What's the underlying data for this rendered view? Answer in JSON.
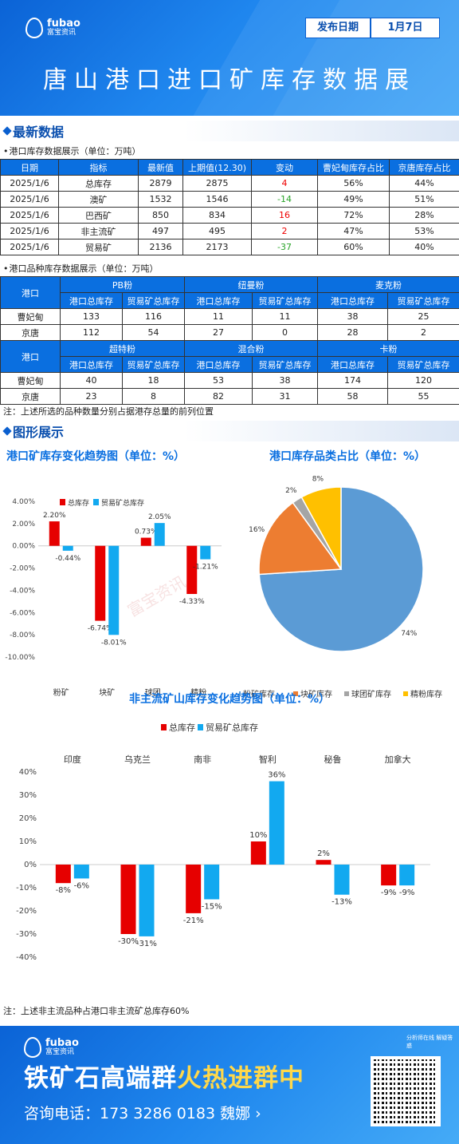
{
  "header": {
    "logo_en": "fubao",
    "logo_cn": "富宝资讯",
    "date_label": "发布日期",
    "date_value": "1月7日",
    "title": "唐山港口进口矿库存数据展"
  },
  "section1": {
    "title": "最新数据"
  },
  "table1": {
    "caption": "港口库存数据展示（单位：万吨）",
    "headers": [
      "日期",
      "指标",
      "最新值",
      "上期值(12.30)",
      "变动",
      "曹妃甸库存占比",
      "京唐库存占比"
    ],
    "rows": [
      [
        "2025/1/6",
        "总库存",
        "2879",
        "2875",
        "4",
        "56%",
        "44%"
      ],
      [
        "2025/1/6",
        "澳矿",
        "1532",
        "1546",
        "-14",
        "49%",
        "51%"
      ],
      [
        "2025/1/6",
        "巴西矿",
        "850",
        "834",
        "16",
        "72%",
        "28%"
      ],
      [
        "2025/1/6",
        "非主流矿",
        "497",
        "495",
        "2",
        "47%",
        "53%"
      ],
      [
        "2025/1/6",
        "贸易矿",
        "2136",
        "2173",
        "-37",
        "60%",
        "40%"
      ]
    ]
  },
  "table2": {
    "caption": "港口品种库存数据展示（单位：万吨）",
    "port_label": "港口",
    "groups1": [
      "PB粉",
      "纽曼粉",
      "麦克粉"
    ],
    "groups2": [
      "超特粉",
      "混合粉",
      "卡粉"
    ],
    "sub_headers": [
      "港口总库存",
      "贸易矿总库存"
    ],
    "rows1": [
      [
        "曹妃甸",
        "133",
        "116",
        "11",
        "11",
        "38",
        "25"
      ],
      [
        "京唐",
        "112",
        "54",
        "27",
        "0",
        "28",
        "2"
      ]
    ],
    "rows2": [
      [
        "曹妃甸",
        "40",
        "18",
        "53",
        "38",
        "174",
        "120"
      ],
      [
        "京唐",
        "23",
        "8",
        "82",
        "31",
        "58",
        "55"
      ]
    ],
    "note": "注：上述所选的品种数量分别占据港存总量的前列位置"
  },
  "section2": {
    "title": "图形展示"
  },
  "watermark": "富宝资讯",
  "chart_data": [
    {
      "type": "bar",
      "title": "港口矿库存变化趋势图（单位：%）",
      "categories": [
        "粉矿",
        "块矿",
        "球团",
        "精粉"
      ],
      "series": [
        {
          "name": "总库存",
          "values": [
            2.2,
            -6.74,
            0.73,
            -4.33
          ],
          "labels": [
            "2.20%",
            "-6.74%",
            "0.73%",
            "-4.33%"
          ]
        },
        {
          "name": "贸易矿总库存",
          "values": [
            -0.44,
            -8.01,
            2.05,
            -1.21
          ],
          "labels": [
            "-0.44%",
            "-8.01%",
            "2.05%",
            "-1.21%"
          ]
        }
      ],
      "yticks": [
        "4.00%",
        "2.00%",
        "0.00%",
        "-2.00%",
        "-4.00%",
        "-6.00%",
        "-8.00%",
        "-10.00%"
      ],
      "ylim": [
        -10,
        4
      ],
      "colors": [
        "#e60000",
        "#12a9f0"
      ]
    },
    {
      "type": "pie",
      "title": "港口库存品类占比（单位：%）",
      "labels": [
        "粉矿库存",
        "块矿库存",
        "球团矿库存",
        "精粉库存"
      ],
      "values": [
        74,
        16,
        2,
        8
      ],
      "value_labels": [
        "74%",
        "16%",
        "2%",
        "8%"
      ],
      "colors": [
        "#5b9bd5",
        "#ed7d31",
        "#a5a5a5",
        "#ffc000"
      ]
    },
    {
      "type": "bar",
      "title": "非主流矿山库存变化趋势图（单位：%）",
      "categories": [
        "印度",
        "乌克兰",
        "南非",
        "智利",
        "秘鲁",
        "加拿大"
      ],
      "series": [
        {
          "name": "总库存",
          "values": [
            -8,
            -30,
            -21,
            10,
            2,
            -9
          ],
          "labels": [
            "-8%",
            "-30%",
            "-21%",
            "10%",
            "2%",
            "-9%"
          ]
        },
        {
          "name": "贸易矿总库存",
          "values": [
            -6,
            -31,
            -15,
            36,
            -13,
            -9
          ],
          "labels": [
            "-6%",
            "-31%",
            "-15%",
            "36%",
            "-13%",
            "-9%"
          ]
        }
      ],
      "yticks": [
        "40%",
        "30%",
        "20%",
        "10%",
        "0%",
        "-10%",
        "-20%",
        "-30%",
        "-40%"
      ],
      "ylim": [
        -40,
        40
      ],
      "colors": [
        "#e60000",
        "#12a9f0"
      ]
    }
  ],
  "note2": "注：上述非主流品种占港口非主流矿总库存60%",
  "footer": {
    "logo_en": "fubao",
    "logo_cn": "富宝资讯",
    "badge": "分析师在线 解疑答惑",
    "slogan_a": "铁矿石高端群",
    "slogan_b": "火热进群中",
    "phone": "咨询电话：173 3286 0183 魏娜 ›"
  }
}
